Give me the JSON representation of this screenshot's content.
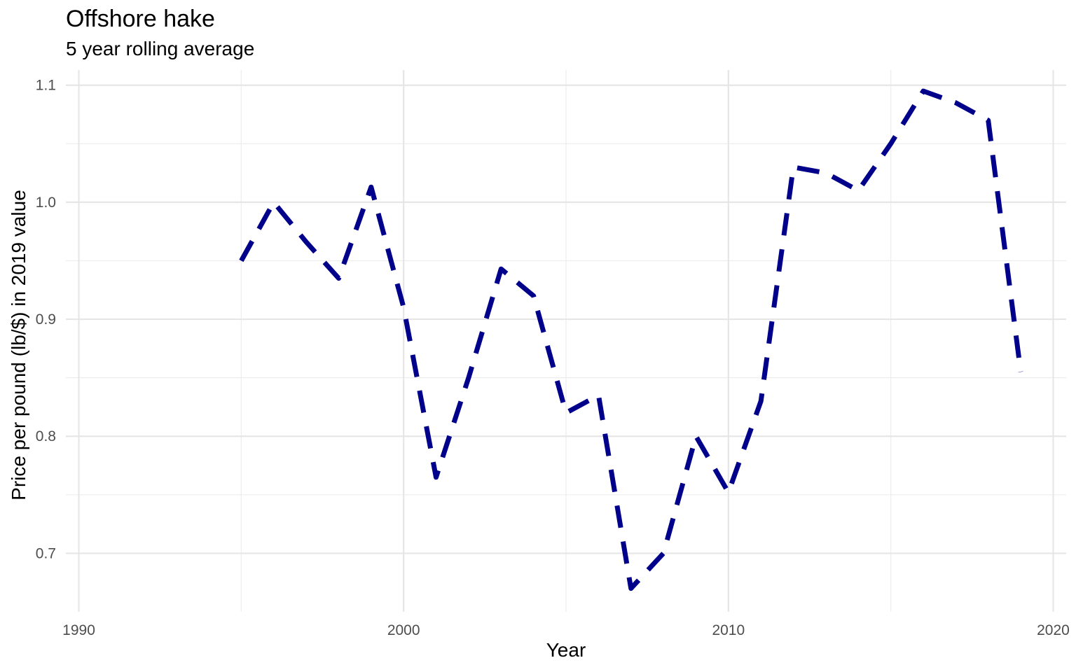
{
  "chart_data": {
    "type": "line",
    "title": "Offshore hake",
    "subtitle": "5 year rolling average",
    "xlabel": "Year",
    "ylabel": "Price per pound (lb/$) in 2019 value",
    "xlim": [
      1989.6,
      2020.4
    ],
    "ylim": [
      0.65,
      1.113
    ],
    "x_ticks": [
      1990,
      2000,
      2010,
      2020
    ],
    "x_tick_labels": [
      "1990",
      "2000",
      "2010",
      "2020"
    ],
    "y_ticks": [
      0.7,
      0.8,
      0.9,
      1.0,
      1.1
    ],
    "y_tick_labels": [
      "0.7",
      "0.8",
      "0.9",
      "1.0",
      "1.1"
    ],
    "grid": true,
    "series": [
      {
        "line_style": "dashed",
        "color": "#00008B",
        "x": [
          1995,
          1996,
          1997,
          1998,
          1999,
          2000,
          2001,
          2002,
          2003,
          2004,
          2005,
          2006,
          2007,
          2008,
          2009,
          2010,
          2011,
          2012,
          2013,
          2014,
          2015,
          2016,
          2017,
          2018,
          2019
        ],
        "values": [
          0.95,
          1.0,
          0.966,
          0.935,
          1.013,
          0.91,
          0.765,
          0.85,
          0.943,
          0.92,
          0.82,
          0.835,
          0.67,
          0.7,
          0.8,
          0.752,
          0.83,
          1.03,
          1.025,
          1.01,
          1.05,
          1.095,
          1.085,
          1.07,
          0.855
        ]
      }
    ]
  }
}
